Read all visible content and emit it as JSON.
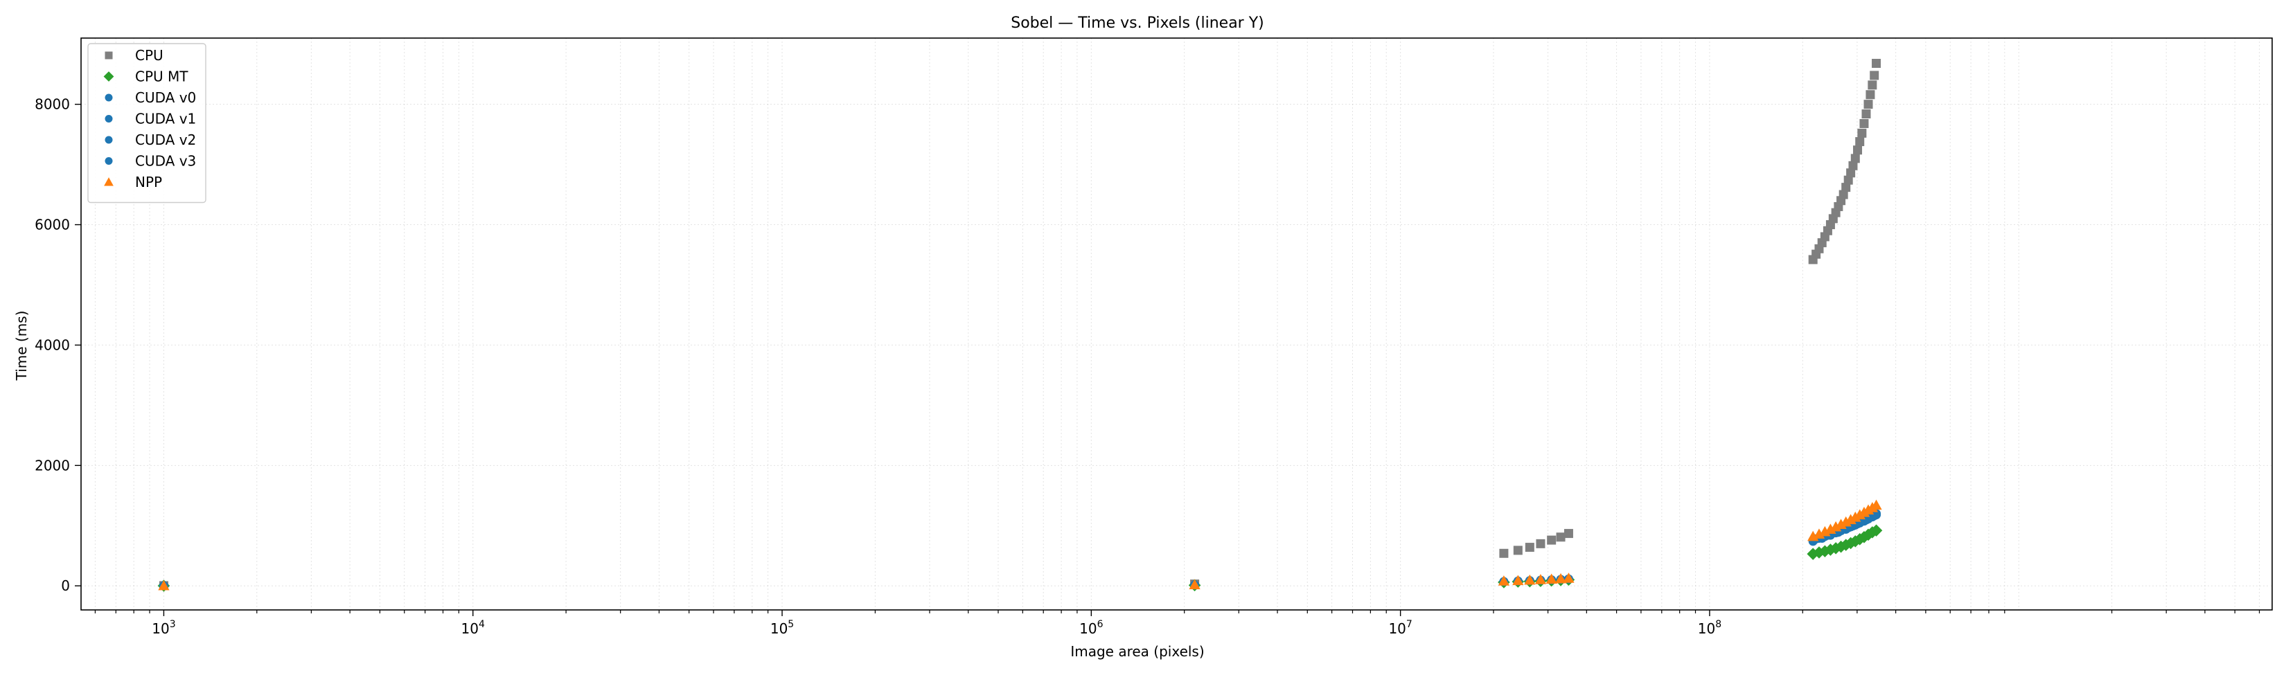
{
  "chart_data": {
    "type": "scatter",
    "title": "Sobel — Time vs. Pixels (linear Y)",
    "xlabel": "Image area (pixels)",
    "ylabel": "Time (ms)",
    "xscale": "log",
    "xlim": [
      540,
      6600000000
    ],
    "ylim": [
      -400,
      9100
    ],
    "x_ticks": [
      1000,
      10000,
      100000,
      1000000,
      10000000,
      100000000
    ],
    "x_tick_labels": [
      {
        "b": "10",
        "e": "3"
      },
      {
        "b": "10",
        "e": "4"
      },
      {
        "b": "10",
        "e": "5"
      },
      {
        "b": "10",
        "e": "6"
      },
      {
        "b": "10",
        "e": "7"
      },
      {
        "b": "10",
        "e": "8"
      }
    ],
    "y_ticks": [
      0,
      2000,
      4000,
      6000,
      8000
    ],
    "y_tick_labels": [
      "0",
      "2000",
      "4000",
      "6000",
      "8000"
    ],
    "grid": true,
    "legend_position": "top-left",
    "series": [
      {
        "name": "CPU",
        "marker": "square",
        "color": "#7f7f7f",
        "x": [
          1000,
          2160000,
          21600000,
          24000000,
          26200000,
          28400000,
          30800000,
          33000000,
          35000000,
          216000000,
          221000000,
          226000000,
          231000000,
          236000000,
          241000000,
          246000000,
          251000000,
          256000000,
          261000000,
          266000000,
          271000000,
          276000000,
          281000000,
          286000000,
          291000000,
          296000000,
          301000000,
          306000000,
          311000000,
          316000000,
          321000000,
          326000000,
          331000000,
          336000000,
          341000000,
          346000000
        ],
        "y": [
          3,
          30,
          540,
          590,
          640,
          700,
          760,
          810,
          870,
          5420,
          5510,
          5600,
          5700,
          5800,
          5900,
          6000,
          6100,
          6200,
          6300,
          6400,
          6500,
          6620,
          6740,
          6860,
          6980,
          7100,
          7240,
          7380,
          7520,
          7680,
          7840,
          8000,
          8160,
          8320,
          8480,
          8680
        ]
      },
      {
        "name": "CPU MT",
        "marker": "diamond",
        "color": "#2ca02c",
        "x": [
          1000,
          2160000,
          21600000,
          24000000,
          26200000,
          28400000,
          30800000,
          33000000,
          35000000,
          216000000,
          226000000,
          236000000,
          246000000,
          256000000,
          266000000,
          276000000,
          286000000,
          296000000,
          306000000,
          316000000,
          326000000,
          336000000,
          346000000
        ],
        "y": [
          1,
          10,
          60,
          70,
          75,
          80,
          88,
          95,
          102,
          530,
          555,
          575,
          600,
          625,
          650,
          680,
          710,
          740,
          775,
          810,
          850,
          890,
          920
        ]
      },
      {
        "name": "CUDA v0",
        "marker": "circle",
        "color": "#1f77b4",
        "x": [
          1000,
          2160000,
          21600000,
          24000000,
          26200000,
          28400000,
          30800000,
          33000000,
          35000000,
          216000000,
          231000000,
          246000000,
          261000000,
          276000000,
          291000000,
          306000000,
          321000000,
          336000000,
          346000000
        ],
        "y": [
          2,
          15,
          72,
          80,
          87,
          94,
          101,
          108,
          115,
          740,
          790,
          840,
          890,
          940,
          995,
          1050,
          1105,
          1160,
          1200
        ]
      },
      {
        "name": "CUDA v1",
        "marker": "circle",
        "color": "#1f77b4",
        "x": [
          216000000,
          236000000,
          256000000,
          276000000,
          296000000,
          316000000,
          336000000,
          346000000
        ],
        "y": [
          760,
          820,
          880,
          945,
          1010,
          1075,
          1145,
          1180
        ]
      },
      {
        "name": "CUDA v2",
        "marker": "circle",
        "color": "#1f77b4",
        "x": [
          221000000,
          241000000,
          261000000,
          281000000,
          301000000,
          321000000,
          341000000
        ],
        "y": [
          780,
          840,
          900,
          965,
          1030,
          1095,
          1165
        ]
      },
      {
        "name": "CUDA v3",
        "marker": "circle",
        "color": "#1f77b4",
        "x": [
          226000000,
          246000000,
          266000000,
          286000000,
          306000000,
          326000000,
          346000000
        ],
        "y": [
          790,
          850,
          915,
          980,
          1045,
          1110,
          1190
        ]
      },
      {
        "name": "NPP",
        "marker": "triangle",
        "color": "#ff7f0e",
        "x": [
          1000,
          2160000,
          21600000,
          24000000,
          26200000,
          28400000,
          30800000,
          33000000,
          35000000,
          216000000,
          226000000,
          236000000,
          246000000,
          256000000,
          266000000,
          276000000,
          286000000,
          296000000,
          306000000,
          316000000,
          326000000,
          336000000,
          346000000
        ],
        "y": [
          2,
          18,
          80,
          88,
          95,
          103,
          110,
          118,
          126,
          820,
          860,
          900,
          940,
          980,
          1020,
          1060,
          1100,
          1140,
          1180,
          1220,
          1260,
          1300,
          1340
        ]
      }
    ]
  }
}
